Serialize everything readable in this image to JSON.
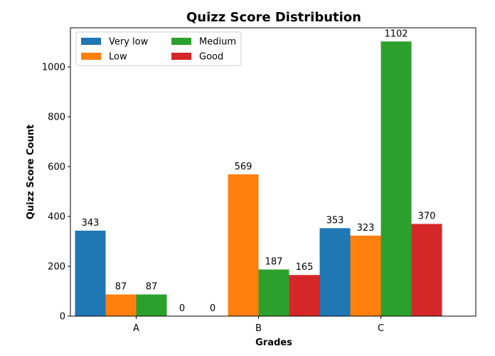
{
  "chart_data": {
    "type": "bar",
    "title": "Quizz Score Distribution",
    "xlabel": "Grades",
    "ylabel": "Quizz Score Count",
    "categories": [
      "A",
      "B",
      "C"
    ],
    "series": [
      {
        "name": "Very low",
        "color": "#1f77b4",
        "values": [
          343,
          0,
          353
        ]
      },
      {
        "name": "Low",
        "color": "#ff7f0e",
        "values": [
          87,
          569,
          323
        ]
      },
      {
        "name": "Medium",
        "color": "#2ca02c",
        "values": [
          87,
          187,
          1102
        ]
      },
      {
        "name": "Good",
        "color": "#d62728",
        "values": [
          0,
          165,
          370
        ]
      }
    ],
    "data_labels": [
      [
        "343",
        "",
        "353"
      ],
      [
        "87",
        "569",
        "323"
      ],
      [
        "87",
        "187",
        "1102"
      ],
      [
        "0",
        "165",
        "370"
      ]
    ],
    "extra_labels": [
      {
        "text": "0",
        "category": "B",
        "series": "Very low"
      }
    ],
    "ylim": [
      0,
      1157
    ],
    "yticks": [
      0,
      200,
      400,
      600,
      800,
      1000
    ],
    "legend": "top-left",
    "legend_columns": 2,
    "grid": false
  }
}
